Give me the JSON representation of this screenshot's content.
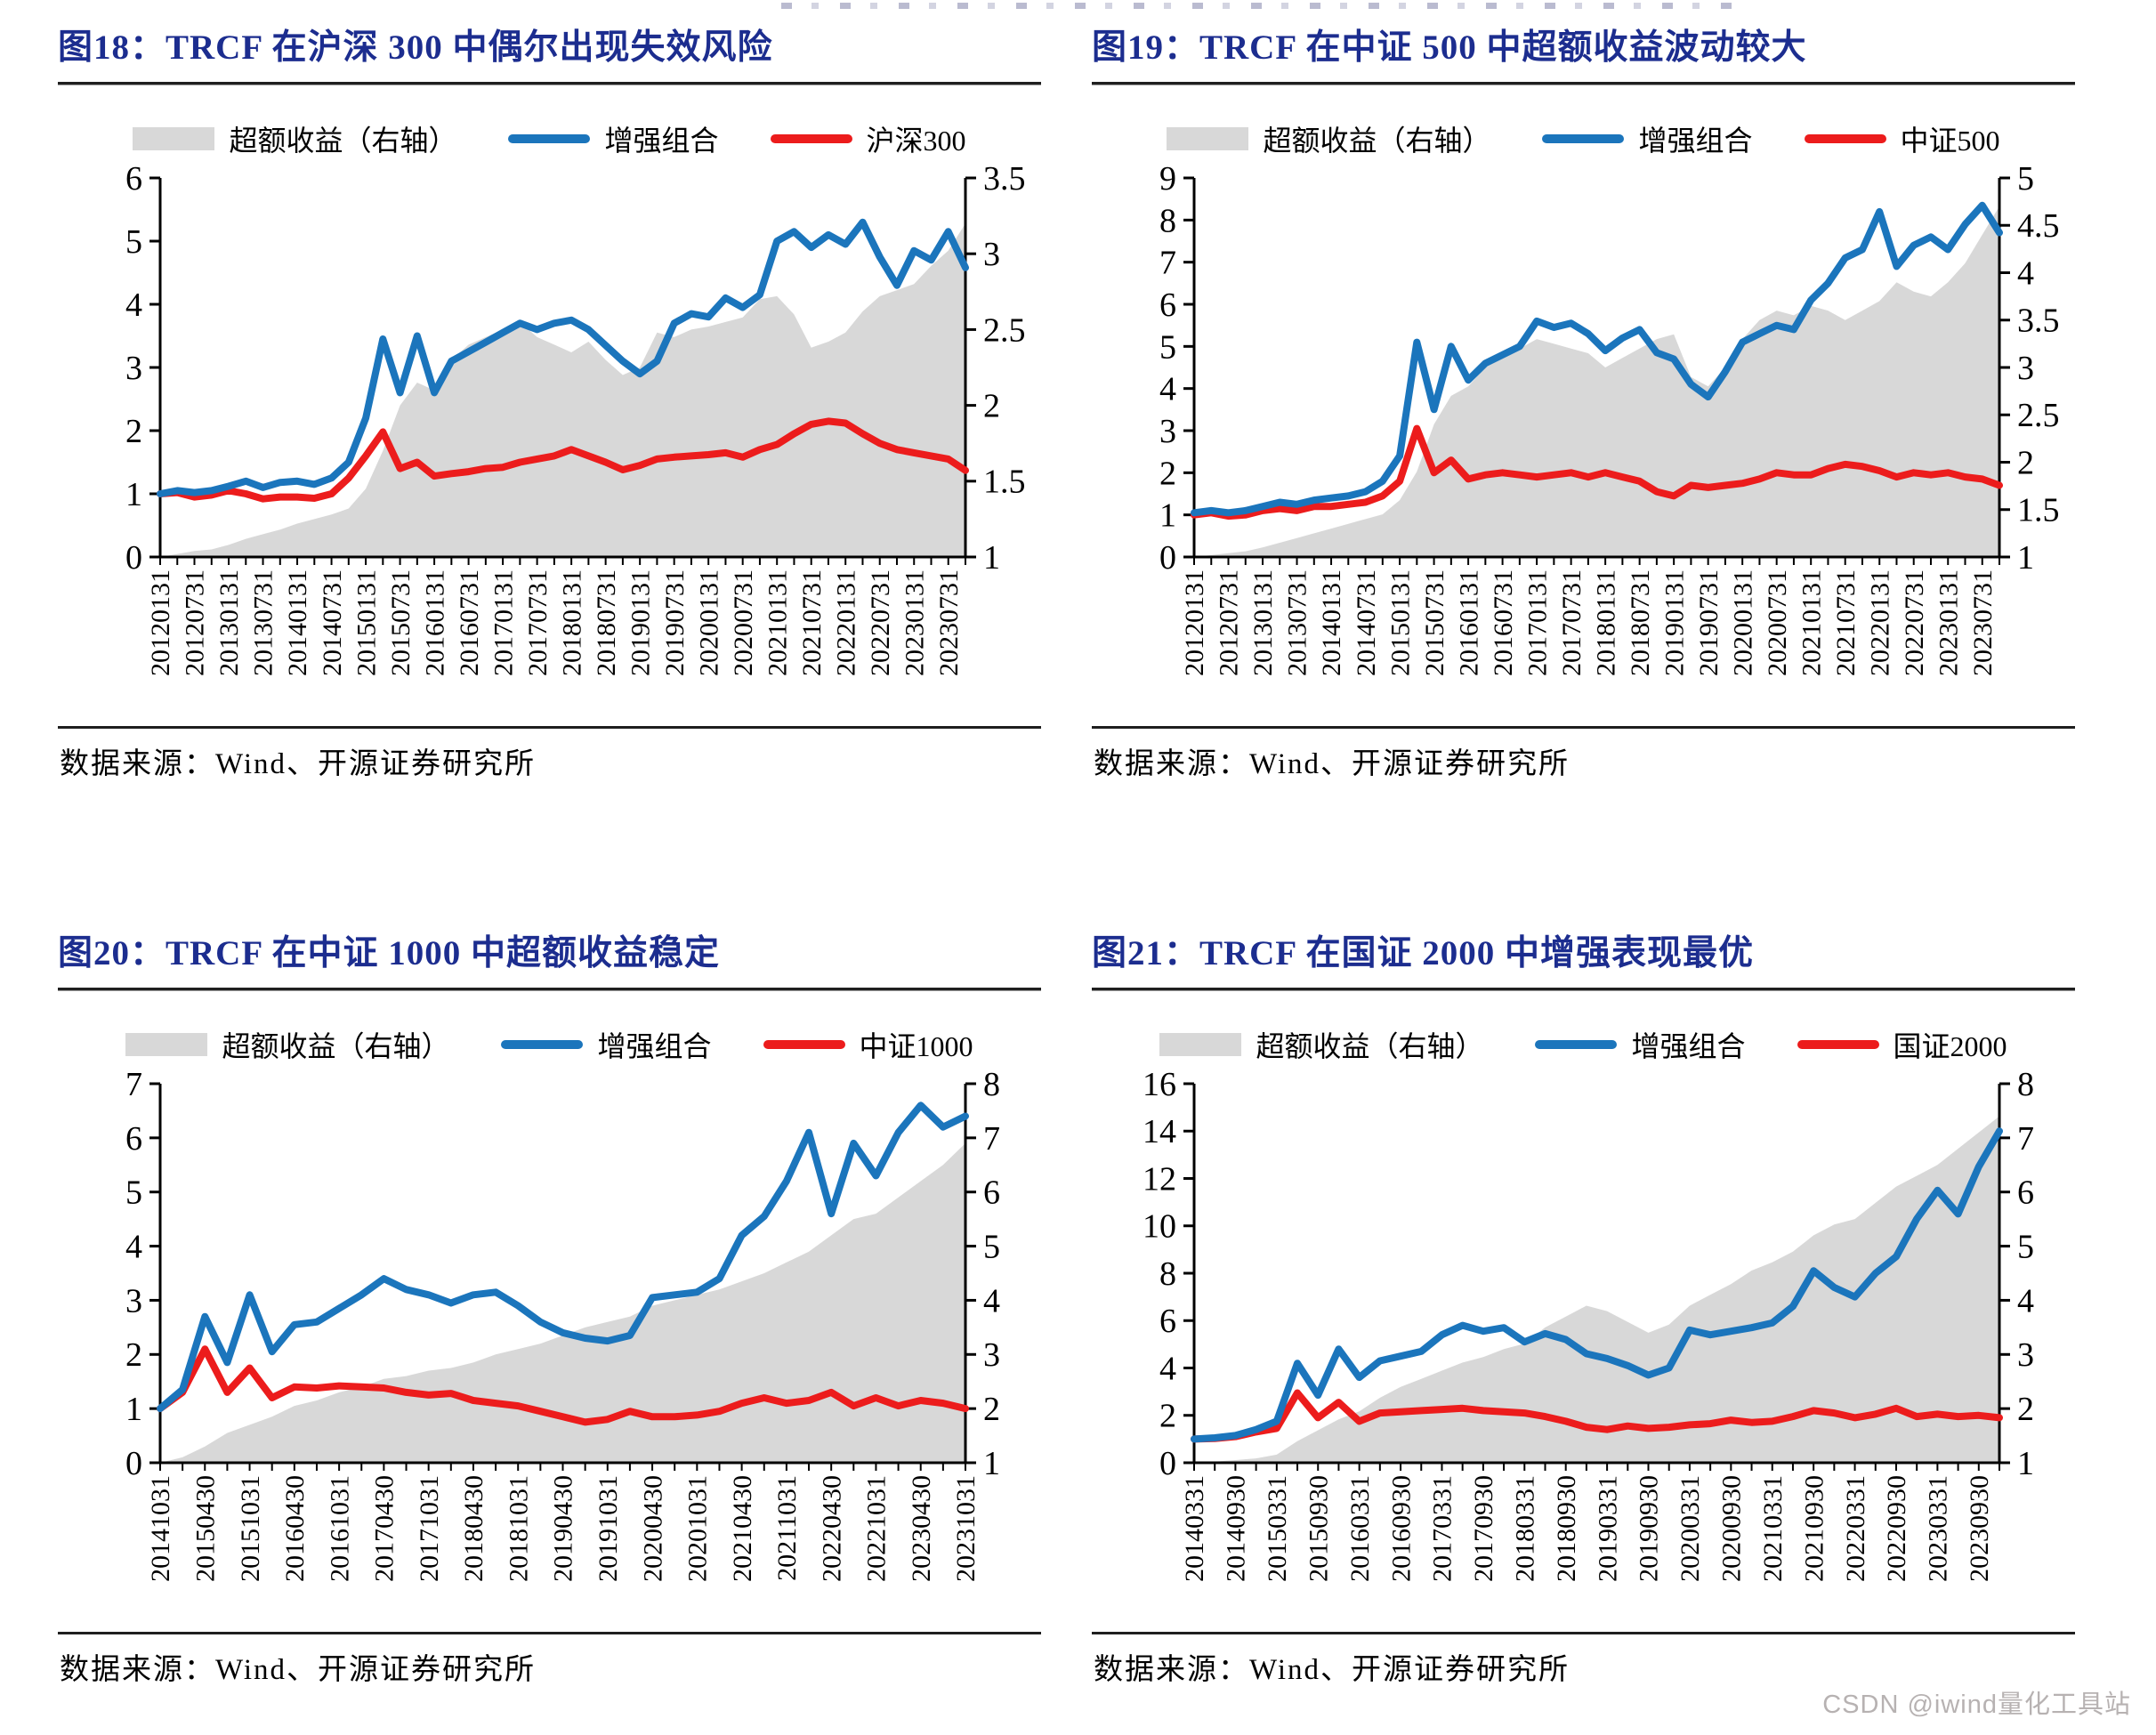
{
  "page": {
    "watermark": "CSDN @iwind量化工具站"
  },
  "source_label": "数据来源：Wind、开源证券研究所",
  "colors": {
    "title_navy": "#1c2d8f",
    "line_blue": "#1b75bc",
    "line_red": "#ec1c1c",
    "area_gray": "#d8d8d8",
    "axis_black": "#000000",
    "watermark_gray": "#b7b2b2"
  },
  "chart_data": [
    {
      "type": "line",
      "title": "图18：TRCF 在沪深 300 中偶尔出现失效风险",
      "legend_position": "top",
      "grid": false,
      "left_axis": {
        "min": 0,
        "max": 6,
        "ticks": [
          0,
          1,
          2,
          3,
          4,
          5,
          6
        ]
      },
      "right_axis": {
        "min": 1,
        "max": 3.5,
        "ticks": [
          1,
          1.5,
          2,
          2.5,
          3,
          3.5
        ]
      },
      "categories": [
        "20120131",
        "20120731",
        "20130131",
        "20130731",
        "20140131",
        "20140731",
        "20150131",
        "20150731",
        "20160131",
        "20160731",
        "20170131",
        "20170731",
        "20180131",
        "20180731",
        "20190131",
        "20190731",
        "20200131",
        "20200731",
        "20210131",
        "20210731",
        "20220131",
        "20220731",
        "20230131",
        "20230731"
      ],
      "series": [
        {
          "name": "超额收益（右轴）",
          "type": "area",
          "axis": "right",
          "color_key": "area_gray",
          "values": [
            1.0,
            1.02,
            1.04,
            1.05,
            1.08,
            1.12,
            1.15,
            1.18,
            1.22,
            1.25,
            1.28,
            1.32,
            1.45,
            1.7,
            2.0,
            2.15,
            2.1,
            2.3,
            2.4,
            2.45,
            2.5,
            2.55,
            2.45,
            2.4,
            2.35,
            2.42,
            2.3,
            2.2,
            2.25,
            2.48,
            2.45,
            2.5,
            2.52,
            2.55,
            2.58,
            2.7,
            2.72,
            2.6,
            2.38,
            2.42,
            2.48,
            2.62,
            2.72,
            2.76,
            2.8,
            2.92,
            3.02,
            3.2
          ]
        },
        {
          "name": "增强组合",
          "type": "line",
          "axis": "left",
          "color_key": "line_blue",
          "values": [
            1.0,
            1.05,
            1.02,
            1.05,
            1.12,
            1.2,
            1.1,
            1.18,
            1.2,
            1.15,
            1.25,
            1.5,
            2.2,
            3.45,
            2.6,
            3.5,
            2.6,
            3.1,
            3.25,
            3.4,
            3.55,
            3.7,
            3.6,
            3.7,
            3.75,
            3.6,
            3.35,
            3.1,
            2.9,
            3.1,
            3.7,
            3.85,
            3.8,
            4.1,
            3.95,
            4.15,
            5.0,
            5.15,
            4.9,
            5.1,
            4.95,
            5.3,
            4.75,
            4.3,
            4.85,
            4.7,
            5.15,
            4.58
          ]
        },
        {
          "name": "沪深300",
          "type": "line",
          "axis": "left",
          "color_key": "line_red",
          "values": [
            1.0,
            1.02,
            0.95,
            0.98,
            1.05,
            1.0,
            0.92,
            0.95,
            0.95,
            0.93,
            1.0,
            1.25,
            1.6,
            1.98,
            1.4,
            1.5,
            1.28,
            1.32,
            1.35,
            1.4,
            1.42,
            1.5,
            1.55,
            1.6,
            1.7,
            1.6,
            1.5,
            1.38,
            1.45,
            1.55,
            1.58,
            1.6,
            1.62,
            1.65,
            1.58,
            1.7,
            1.78,
            1.95,
            2.1,
            2.15,
            2.12,
            1.95,
            1.8,
            1.7,
            1.65,
            1.6,
            1.55,
            1.37
          ]
        }
      ]
    },
    {
      "type": "line",
      "title": "图19：TRCF 在中证 500 中超额收益波动较大",
      "legend_position": "top",
      "grid": false,
      "left_axis": {
        "min": 0,
        "max": 9,
        "ticks": [
          0,
          1,
          2,
          3,
          4,
          5,
          6,
          7,
          8,
          9
        ]
      },
      "right_axis": {
        "min": 1,
        "max": 5,
        "ticks": [
          1,
          1.5,
          2,
          2.5,
          3,
          3.5,
          4,
          4.5,
          5
        ]
      },
      "categories": [
        "20120131",
        "20120731",
        "20130131",
        "20130731",
        "20140131",
        "20140731",
        "20150131",
        "20150731",
        "20160131",
        "20160731",
        "20170131",
        "20170731",
        "20180131",
        "20180731",
        "20190131",
        "20190731",
        "20200131",
        "20200731",
        "20210131",
        "20210731",
        "20220131",
        "20220731",
        "20230131",
        "20230731"
      ],
      "series": [
        {
          "name": "超额收益（右轴）",
          "type": "area",
          "axis": "right",
          "color_key": "area_gray",
          "values": [
            1.0,
            1.02,
            1.04,
            1.06,
            1.1,
            1.15,
            1.2,
            1.25,
            1.3,
            1.35,
            1.4,
            1.45,
            1.6,
            1.9,
            2.4,
            2.7,
            2.8,
            3.0,
            3.1,
            3.2,
            3.3,
            3.25,
            3.2,
            3.15,
            3.0,
            3.1,
            3.2,
            3.3,
            3.35,
            2.9,
            2.8,
            3.0,
            3.3,
            3.5,
            3.6,
            3.55,
            3.65,
            3.6,
            3.5,
            3.6,
            3.7,
            3.9,
            3.8,
            3.75,
            3.9,
            4.1,
            4.4,
            4.7
          ]
        },
        {
          "name": "增强组合",
          "type": "line",
          "axis": "left",
          "color_key": "line_blue",
          "values": [
            1.05,
            1.1,
            1.05,
            1.1,
            1.2,
            1.3,
            1.25,
            1.35,
            1.4,
            1.45,
            1.55,
            1.8,
            2.4,
            5.1,
            3.5,
            5.0,
            4.2,
            4.6,
            4.8,
            5.0,
            5.6,
            5.45,
            5.55,
            5.3,
            4.9,
            5.2,
            5.4,
            4.85,
            4.7,
            4.1,
            3.8,
            4.4,
            5.1,
            5.3,
            5.5,
            5.4,
            6.1,
            6.5,
            7.1,
            7.3,
            8.2,
            6.9,
            7.4,
            7.6,
            7.3,
            7.9,
            8.35,
            7.7
          ]
        },
        {
          "name": "中证500",
          "type": "line",
          "axis": "left",
          "color_key": "line_red",
          "values": [
            1.0,
            1.05,
            0.97,
            1.0,
            1.1,
            1.15,
            1.1,
            1.2,
            1.2,
            1.25,
            1.3,
            1.45,
            1.8,
            3.05,
            2.0,
            2.3,
            1.85,
            1.95,
            2.0,
            1.95,
            1.9,
            1.95,
            2.0,
            1.9,
            2.0,
            1.9,
            1.8,
            1.55,
            1.45,
            1.7,
            1.65,
            1.7,
            1.75,
            1.85,
            2.0,
            1.95,
            1.95,
            2.1,
            2.2,
            2.15,
            2.05,
            1.9,
            2.0,
            1.95,
            2.0,
            1.9,
            1.85,
            1.7
          ]
        }
      ]
    },
    {
      "type": "line",
      "title": "图20：TRCF 在中证 1000 中超额收益稳定",
      "legend_position": "top",
      "grid": false,
      "left_axis": {
        "min": 0,
        "max": 7,
        "ticks": [
          0,
          1,
          2,
          3,
          4,
          5,
          6,
          7
        ]
      },
      "right_axis": {
        "min": 1,
        "max": 8,
        "ticks": [
          1,
          2,
          3,
          4,
          5,
          6,
          7,
          8
        ]
      },
      "categories": [
        "20141031",
        "20150430",
        "20151031",
        "20160430",
        "20161031",
        "20170430",
        "20171031",
        "20180430",
        "20181031",
        "20190430",
        "20191031",
        "20200430",
        "20201031",
        "20210430",
        "20211031",
        "20220430",
        "20221031",
        "20230430",
        "20231031"
      ],
      "series": [
        {
          "name": "超额收益（右轴）",
          "type": "area",
          "axis": "right",
          "color_key": "area_gray",
          "values": [
            1.0,
            1.1,
            1.3,
            1.55,
            1.7,
            1.85,
            2.05,
            2.15,
            2.3,
            2.4,
            2.55,
            2.6,
            2.7,
            2.75,
            2.85,
            3.0,
            3.1,
            3.2,
            3.35,
            3.5,
            3.6,
            3.7,
            3.9,
            4.0,
            4.1,
            4.2,
            4.35,
            4.5,
            4.7,
            4.9,
            5.2,
            5.5,
            5.6,
            5.9,
            6.2,
            6.5,
            6.9
          ]
        },
        {
          "name": "增强组合",
          "type": "line",
          "axis": "left",
          "color_key": "line_blue",
          "values": [
            1.0,
            1.35,
            2.7,
            1.85,
            3.1,
            2.05,
            2.55,
            2.6,
            2.85,
            3.1,
            3.4,
            3.2,
            3.1,
            2.95,
            3.1,
            3.15,
            2.9,
            2.6,
            2.4,
            2.3,
            2.25,
            2.35,
            3.05,
            3.1,
            3.15,
            3.4,
            4.2,
            4.55,
            5.2,
            6.1,
            4.6,
            5.9,
            5.3,
            6.1,
            6.6,
            6.2,
            6.4
          ]
        },
        {
          "name": "中证1000",
          "type": "line",
          "axis": "left",
          "color_key": "line_red",
          "values": [
            1.0,
            1.3,
            2.1,
            1.3,
            1.75,
            1.2,
            1.4,
            1.38,
            1.42,
            1.4,
            1.38,
            1.3,
            1.25,
            1.28,
            1.15,
            1.1,
            1.05,
            0.95,
            0.85,
            0.75,
            0.8,
            0.95,
            0.85,
            0.85,
            0.88,
            0.95,
            1.1,
            1.2,
            1.1,
            1.15,
            1.3,
            1.05,
            1.2,
            1.05,
            1.15,
            1.1,
            1.0
          ]
        }
      ]
    },
    {
      "type": "line",
      "title": "图21：TRCF 在国证 2000 中增强表现最优",
      "legend_position": "top",
      "grid": false,
      "left_axis": {
        "min": 0,
        "max": 16,
        "ticks": [
          0,
          2,
          4,
          6,
          8,
          10,
          12,
          14,
          16
        ]
      },
      "right_axis": {
        "min": 1,
        "max": 8,
        "ticks": [
          1,
          2,
          3,
          4,
          5,
          6,
          7,
          8
        ]
      },
      "categories": [
        "20140331",
        "20140930",
        "20150331",
        "20150930",
        "20160331",
        "20160930",
        "20170331",
        "20170930",
        "20180331",
        "20180930",
        "20190331",
        "20190930",
        "20200331",
        "20200930",
        "20210331",
        "20210930",
        "20220331",
        "20220930",
        "20230331",
        "20230930"
      ],
      "series": [
        {
          "name": "超额收益（右轴）",
          "type": "area",
          "axis": "right",
          "color_key": "area_gray",
          "values": [
            1.0,
            1.02,
            1.05,
            1.08,
            1.15,
            1.4,
            1.6,
            1.8,
            1.95,
            2.2,
            2.4,
            2.55,
            2.7,
            2.85,
            2.95,
            3.1,
            3.2,
            3.5,
            3.7,
            3.9,
            3.8,
            3.6,
            3.4,
            3.55,
            3.9,
            4.1,
            4.3,
            4.55,
            4.7,
            4.9,
            5.2,
            5.4,
            5.5,
            5.8,
            6.1,
            6.3,
            6.5,
            6.8,
            7.1,
            7.4
          ]
        },
        {
          "name": "增强组合",
          "type": "line",
          "axis": "left",
          "color_key": "line_blue",
          "values": [
            1.0,
            1.05,
            1.15,
            1.4,
            1.75,
            4.2,
            2.85,
            4.8,
            3.6,
            4.3,
            4.5,
            4.7,
            5.4,
            5.8,
            5.55,
            5.7,
            5.1,
            5.45,
            5.2,
            4.6,
            4.4,
            4.1,
            3.7,
            4.0,
            5.6,
            5.4,
            5.55,
            5.7,
            5.9,
            6.6,
            8.1,
            7.4,
            7.0,
            8.0,
            8.7,
            10.3,
            11.5,
            10.5,
            12.5,
            14.0
          ]
        },
        {
          "name": "国证2000",
          "type": "line",
          "axis": "left",
          "color_key": "line_red",
          "values": [
            1.0,
            1.02,
            1.1,
            1.3,
            1.45,
            2.95,
            1.9,
            2.55,
            1.75,
            2.1,
            2.15,
            2.2,
            2.25,
            2.3,
            2.2,
            2.15,
            2.1,
            1.95,
            1.75,
            1.5,
            1.4,
            1.55,
            1.45,
            1.5,
            1.6,
            1.65,
            1.8,
            1.7,
            1.75,
            1.95,
            2.2,
            2.1,
            1.9,
            2.05,
            2.3,
            1.95,
            2.05,
            1.95,
            2.0,
            1.9
          ]
        }
      ]
    }
  ]
}
